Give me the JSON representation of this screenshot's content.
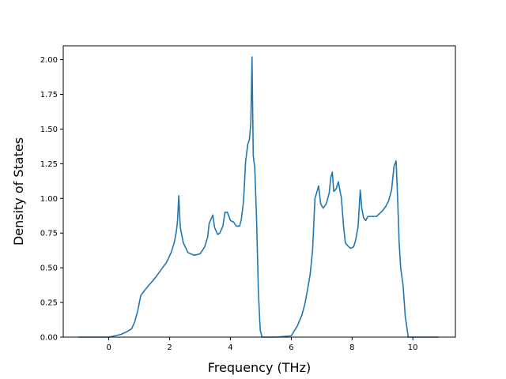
{
  "chart_data": {
    "type": "line",
    "title": "",
    "xlabel": "Frequency (THz)",
    "ylabel": "Density of States",
    "xlim": [
      -1.5,
      11.4
    ],
    "ylim": [
      0,
      2.1
    ],
    "grid": false,
    "line_color": "#1f77b4",
    "xticks": [
      {
        "value": 0,
        "label": "0"
      },
      {
        "value": 2,
        "label": "2"
      },
      {
        "value": 4,
        "label": "4"
      },
      {
        "value": 6,
        "label": "6"
      },
      {
        "value": 8,
        "label": "8"
      },
      {
        "value": 10,
        "label": "10"
      }
    ],
    "yticks": [
      {
        "value": 0,
        "label": "0.00"
      },
      {
        "value": 0.25,
        "label": "0.25"
      },
      {
        "value": 0.5,
        "label": "0.50"
      },
      {
        "value": 0.75,
        "label": "0.75"
      },
      {
        "value": 1.0,
        "label": "1.00"
      },
      {
        "value": 1.25,
        "label": "1.25"
      },
      {
        "value": 1.5,
        "label": "1.50"
      },
      {
        "value": 1.75,
        "label": "1.75"
      },
      {
        "value": 2.0,
        "label": "2.00"
      }
    ],
    "series": [
      {
        "x": [
          -1.0,
          -0.5,
          0.0,
          0.2,
          0.4,
          0.6,
          0.75,
          0.85,
          0.95,
          1.05,
          1.15,
          1.3,
          1.5,
          1.7,
          1.9,
          2.05,
          2.15,
          2.22,
          2.26,
          2.3,
          2.35,
          2.45,
          2.6,
          2.8,
          3.0,
          3.15,
          3.25,
          3.3,
          3.38,
          3.42,
          3.48,
          3.58,
          3.65,
          3.75,
          3.82,
          3.9,
          4.0,
          4.1,
          4.2,
          4.3,
          4.36,
          4.43,
          4.5,
          4.57,
          4.62,
          4.67,
          4.71,
          4.75,
          4.8,
          4.86,
          4.92,
          4.98,
          5.04,
          5.1,
          5.5,
          6.0,
          6.2,
          6.35,
          6.45,
          6.55,
          6.62,
          6.7,
          6.78,
          6.85,
          6.9,
          6.97,
          7.05,
          7.15,
          7.25,
          7.3,
          7.35,
          7.4,
          7.48,
          7.55,
          7.65,
          7.72,
          7.78,
          7.85,
          7.95,
          8.05,
          8.12,
          8.2,
          8.27,
          8.32,
          8.38,
          8.45,
          8.52,
          8.6,
          8.7,
          8.8,
          8.9,
          9.0,
          9.1,
          9.2,
          9.3,
          9.38,
          9.45,
          9.5,
          9.55,
          9.6,
          9.68,
          9.75,
          9.85,
          9.9,
          10.5,
          10.85
        ],
        "y": [
          0.0,
          0.0,
          0.0,
          0.01,
          0.02,
          0.04,
          0.06,
          0.11,
          0.19,
          0.3,
          0.33,
          0.37,
          0.42,
          0.48,
          0.54,
          0.61,
          0.68,
          0.76,
          0.84,
          1.02,
          0.79,
          0.68,
          0.61,
          0.59,
          0.6,
          0.65,
          0.72,
          0.82,
          0.86,
          0.88,
          0.79,
          0.74,
          0.75,
          0.8,
          0.9,
          0.9,
          0.84,
          0.83,
          0.8,
          0.8,
          0.85,
          0.98,
          1.27,
          1.39,
          1.42,
          1.54,
          2.02,
          1.31,
          1.22,
          0.85,
          0.32,
          0.05,
          0.0,
          0.0,
          0.0,
          0.01,
          0.08,
          0.16,
          0.24,
          0.36,
          0.45,
          0.62,
          1.0,
          1.05,
          1.09,
          0.96,
          0.93,
          0.96,
          1.04,
          1.15,
          1.19,
          1.05,
          1.07,
          1.12,
          1.0,
          0.8,
          0.68,
          0.66,
          0.64,
          0.65,
          0.7,
          0.8,
          1.06,
          0.93,
          0.86,
          0.84,
          0.87,
          0.87,
          0.87,
          0.87,
          0.89,
          0.91,
          0.94,
          0.98,
          1.06,
          1.23,
          1.27,
          1.0,
          0.68,
          0.5,
          0.37,
          0.15,
          0.0,
          0.0,
          0.0,
          0.0
        ]
      }
    ]
  }
}
